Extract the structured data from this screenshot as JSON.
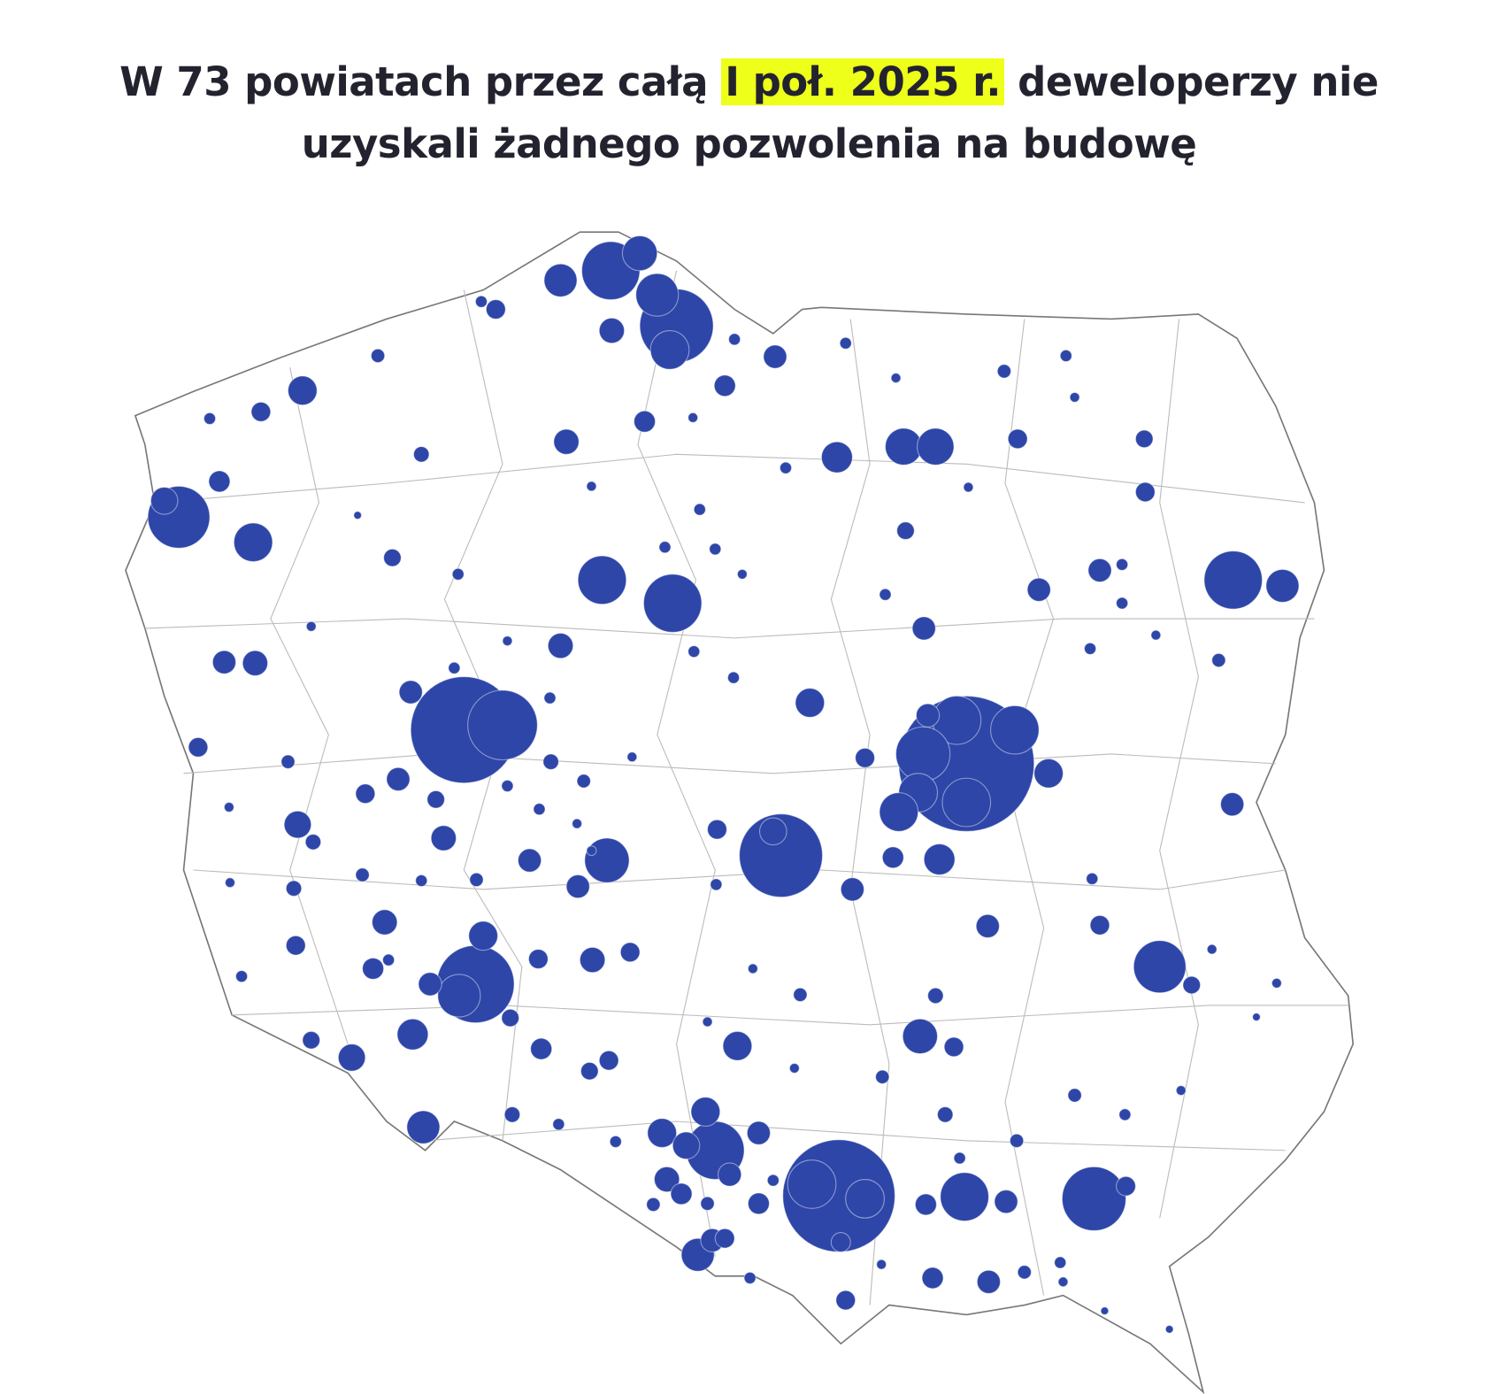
{
  "title": {
    "before": "W 73 powiatach przez całą",
    "highlight": "I poł. 2025 r.",
    "after": "deweloperzy nie",
    "line2": "uzyskali żadnego pozwolenia na budowę"
  }
}
